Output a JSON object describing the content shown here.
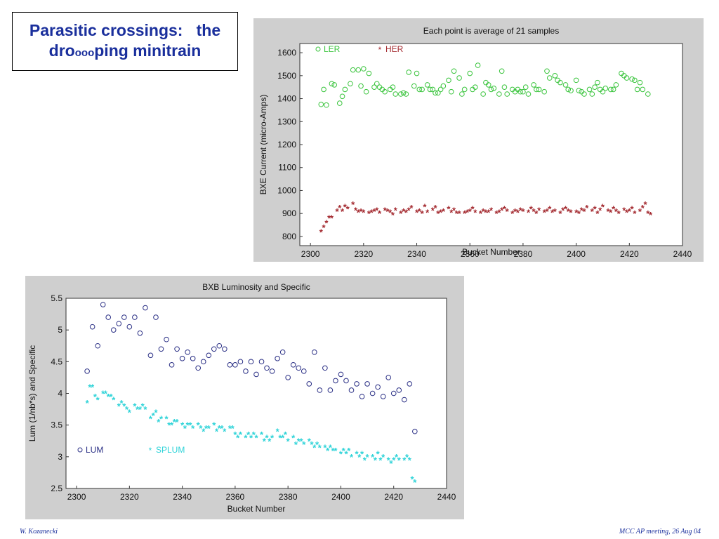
{
  "slide": {
    "title_line1": "Parasitic crossings:   the",
    "title_dr": "dro",
    "title_o1": "o",
    "title_o2": "o",
    "title_o3": "o",
    "title_rest": "ping minitrain",
    "footer_left": "W. Kozanecki",
    "footer_right": "MCC AP meeting, 26 Aug 04"
  },
  "colors": {
    "title": "#1a2f9c",
    "ler": "#39c43c",
    "her": "#a3282e",
    "lum": "#2a2f85",
    "splum": "#2ed3d8",
    "panel_bg": "#cfcfcf"
  },
  "chart_data": [
    {
      "type": "scatter",
      "title": "Each point is average of 21 samples",
      "xlabel": "Bucket Number",
      "ylabel": "BXE Current (micro-Amps)",
      "xlim": [
        2296,
        2440
      ],
      "ylim": [
        760,
        1640
      ],
      "xticks": [
        2300,
        2320,
        2340,
        2360,
        2380,
        2400,
        2420,
        2440
      ],
      "yticks": [
        800,
        900,
        1000,
        1100,
        1200,
        1300,
        1400,
        1500,
        1600
      ],
      "legend_position": "top-left",
      "series": [
        {
          "name": "LER",
          "marker": "o",
          "color": "#39c43c",
          "x": [
            2304,
            2305,
            2306,
            2308,
            2309,
            2311,
            2312,
            2313,
            2315,
            2316,
            2318,
            2319,
            2320,
            2321,
            2322,
            2324,
            2325,
            2326,
            2327,
            2328,
            2330,
            2331,
            2332,
            2334,
            2335,
            2336,
            2337,
            2339,
            2340,
            2341,
            2342,
            2344,
            2345,
            2346,
            2347,
            2348,
            2349,
            2350,
            2352,
            2353,
            2354,
            2356,
            2357,
            2358,
            2360,
            2361,
            2362,
            2363,
            2365,
            2366,
            2367,
            2368,
            2369,
            2371,
            2372,
            2373,
            2374,
            2376,
            2377,
            2378,
            2379,
            2380,
            2381,
            2382,
            2384,
            2385,
            2386,
            2388,
            2389,
            2390,
            2392,
            2393,
            2394,
            2396,
            2397,
            2398,
            2400,
            2401,
            2402,
            2403,
            2405,
            2406,
            2407,
            2408,
            2409,
            2410,
            2411,
            2413,
            2414,
            2415,
            2417,
            2418,
            2419,
            2421,
            2422,
            2423,
            2424,
            2425,
            2427
          ],
          "y": [
            1375,
            1440,
            1372,
            1465,
            1460,
            1380,
            1410,
            1440,
            1465,
            1525,
            1525,
            1455,
            1530,
            1430,
            1510,
            1450,
            1465,
            1450,
            1440,
            1430,
            1440,
            1450,
            1420,
            1420,
            1425,
            1420,
            1515,
            1455,
            1510,
            1440,
            1440,
            1460,
            1440,
            1440,
            1425,
            1425,
            1440,
            1455,
            1480,
            1430,
            1520,
            1490,
            1420,
            1440,
            1510,
            1440,
            1450,
            1545,
            1420,
            1470,
            1460,
            1440,
            1445,
            1420,
            1520,
            1450,
            1420,
            1440,
            1430,
            1440,
            1430,
            1430,
            1450,
            1420,
            1460,
            1440,
            1440,
            1430,
            1520,
            1490,
            1500,
            1480,
            1470,
            1460,
            1440,
            1435,
            1480,
            1435,
            1430,
            1420,
            1440,
            1420,
            1450,
            1470,
            1440,
            1430,
            1445,
            1440,
            1440,
            1460,
            1510,
            1500,
            1490,
            1485,
            1480,
            1440,
            1470,
            1440,
            1420
          ]
        },
        {
          "name": "HER",
          "marker": "*",
          "color": "#a3282e",
          "x": [
            2304,
            2305,
            2306,
            2307,
            2308,
            2310,
            2311,
            2312,
            2313,
            2314,
            2316,
            2317,
            2318,
            2319,
            2320,
            2322,
            2323,
            2324,
            2325,
            2326,
            2328,
            2329,
            2330,
            2331,
            2332,
            2334,
            2335,
            2336,
            2337,
            2338,
            2340,
            2341,
            2342,
            2343,
            2344,
            2346,
            2347,
            2348,
            2349,
            2350,
            2352,
            2353,
            2354,
            2355,
            2356,
            2358,
            2359,
            2360,
            2361,
            2362,
            2364,
            2365,
            2366,
            2367,
            2368,
            2370,
            2371,
            2372,
            2373,
            2374,
            2376,
            2377,
            2378,
            2379,
            2380,
            2382,
            2383,
            2384,
            2385,
            2386,
            2388,
            2389,
            2390,
            2391,
            2392,
            2394,
            2395,
            2396,
            2397,
            2398,
            2400,
            2401,
            2402,
            2403,
            2404,
            2406,
            2407,
            2408,
            2409,
            2410,
            2412,
            2413,
            2414,
            2415,
            2416,
            2418,
            2419,
            2420,
            2421,
            2422,
            2424,
            2425,
            2426,
            2427,
            2428
          ],
          "y": [
            820,
            840,
            860,
            880,
            880,
            910,
            925,
            910,
            930,
            920,
            940,
            915,
            905,
            910,
            905,
            900,
            905,
            910,
            915,
            900,
            915,
            910,
            905,
            895,
            915,
            900,
            910,
            905,
            915,
            925,
            905,
            910,
            900,
            930,
            905,
            915,
            925,
            900,
            905,
            910,
            920,
            905,
            915,
            900,
            900,
            900,
            905,
            910,
            920,
            905,
            900,
            910,
            905,
            905,
            915,
            900,
            905,
            915,
            920,
            910,
            900,
            910,
            905,
            915,
            910,
            905,
            920,
            910,
            900,
            915,
            905,
            910,
            920,
            905,
            910,
            900,
            915,
            920,
            910,
            905,
            905,
            900,
            915,
            910,
            925,
            910,
            920,
            900,
            915,
            930,
            910,
            905,
            920,
            910,
            900,
            915,
            905,
            910,
            920,
            900,
            910,
            925,
            940,
            900,
            895
          ]
        }
      ]
    },
    {
      "type": "scatter",
      "title": "BXB Luminosity and Specific",
      "xlabel": "Bucket Number",
      "ylabel": "Lum (1/nb*s) and Specific",
      "xlim": [
        2296,
        2440
      ],
      "ylim": [
        2.5,
        5.5
      ],
      "xticks": [
        2300,
        2320,
        2340,
        2360,
        2380,
        2400,
        2420,
        2440
      ],
      "yticks": [
        2.5,
        3,
        3.5,
        4,
        4.5,
        5,
        5.5
      ],
      "legend_position": "bottom-left",
      "series": [
        {
          "name": "LUM",
          "marker": "o",
          "color": "#2a2f85",
          "x": [
            2304,
            2306,
            2308,
            2310,
            2312,
            2314,
            2316,
            2318,
            2320,
            2322,
            2324,
            2326,
            2328,
            2330,
            2332,
            2334,
            2336,
            2338,
            2340,
            2342,
            2344,
            2346,
            2348,
            2350,
            2352,
            2354,
            2356,
            2358,
            2360,
            2362,
            2364,
            2366,
            2368,
            2370,
            2372,
            2374,
            2376,
            2378,
            2380,
            2382,
            2384,
            2386,
            2388,
            2390,
            2392,
            2394,
            2396,
            2398,
            2400,
            2402,
            2404,
            2406,
            2408,
            2410,
            2412,
            2414,
            2416,
            2418,
            2420,
            2422,
            2424,
            2426,
            2428
          ],
          "y": [
            4.35,
            5.05,
            4.75,
            5.4,
            5.2,
            5.0,
            5.1,
            5.2,
            5.05,
            5.2,
            4.95,
            5.35,
            4.6,
            5.2,
            4.7,
            4.85,
            4.45,
            4.7,
            4.55,
            4.65,
            4.55,
            4.4,
            4.5,
            4.6,
            4.7,
            4.75,
            4.7,
            4.45,
            4.45,
            4.5,
            4.35,
            4.5,
            4.3,
            4.5,
            4.4,
            4.35,
            4.55,
            4.65,
            4.25,
            4.45,
            4.4,
            4.35,
            4.15,
            4.65,
            4.05,
            4.4,
            4.05,
            4.2,
            4.3,
            4.2,
            4.05,
            4.15,
            3.95,
            4.15,
            4.0,
            4.1,
            3.95,
            4.25,
            4.0,
            4.05,
            3.9,
            4.15,
            3.4
          ]
        },
        {
          "name": "SPLUM",
          "marker": "*",
          "color": "#2ed3d8",
          "x": [
            2304,
            2305,
            2306,
            2307,
            2308,
            2310,
            2311,
            2312,
            2313,
            2314,
            2316,
            2317,
            2318,
            2319,
            2320,
            2322,
            2323,
            2324,
            2325,
            2326,
            2328,
            2329,
            2330,
            2331,
            2332,
            2334,
            2335,
            2336,
            2337,
            2338,
            2340,
            2341,
            2342,
            2343,
            2344,
            2346,
            2347,
            2348,
            2349,
            2350,
            2352,
            2353,
            2354,
            2355,
            2356,
            2358,
            2359,
            2360,
            2361,
            2362,
            2364,
            2365,
            2366,
            2367,
            2368,
            2370,
            2371,
            2372,
            2373,
            2374,
            2376,
            2377,
            2378,
            2379,
            2380,
            2382,
            2383,
            2384,
            2385,
            2386,
            2388,
            2389,
            2390,
            2391,
            2392,
            2394,
            2395,
            2396,
            2397,
            2398,
            2400,
            2401,
            2402,
            2403,
            2404,
            2406,
            2407,
            2408,
            2409,
            2410,
            2412,
            2413,
            2414,
            2415,
            2416,
            2418,
            2419,
            2420,
            2421,
            2422,
            2424,
            2425,
            2426,
            2427,
            2428
          ],
          "y": [
            3.85,
            4.1,
            4.1,
            3.95,
            3.9,
            4.0,
            4.0,
            3.95,
            3.95,
            3.9,
            3.8,
            3.85,
            3.8,
            3.75,
            3.7,
            3.8,
            3.75,
            3.75,
            3.8,
            3.75,
            3.6,
            3.65,
            3.7,
            3.55,
            3.6,
            3.6,
            3.5,
            3.5,
            3.55,
            3.55,
            3.5,
            3.45,
            3.5,
            3.5,
            3.45,
            3.5,
            3.45,
            3.4,
            3.45,
            3.45,
            3.5,
            3.4,
            3.45,
            3.45,
            3.4,
            3.45,
            3.45,
            3.35,
            3.3,
            3.35,
            3.3,
            3.35,
            3.3,
            3.35,
            3.3,
            3.35,
            3.25,
            3.3,
            3.25,
            3.3,
            3.4,
            3.3,
            3.3,
            3.35,
            3.25,
            3.3,
            3.2,
            3.25,
            3.25,
            3.2,
            3.25,
            3.2,
            3.15,
            3.2,
            3.15,
            3.15,
            3.1,
            3.15,
            3.1,
            3.1,
            3.05,
            3.1,
            3.05,
            3.1,
            3.0,
            3.05,
            3.0,
            3.05,
            2.95,
            3.0,
            3.0,
            2.95,
            3.05,
            2.95,
            3.0,
            2.95,
            2.9,
            2.95,
            3.0,
            2.95,
            2.95,
            3.0,
            2.95,
            2.65,
            2.6
          ]
        }
      ]
    }
  ]
}
